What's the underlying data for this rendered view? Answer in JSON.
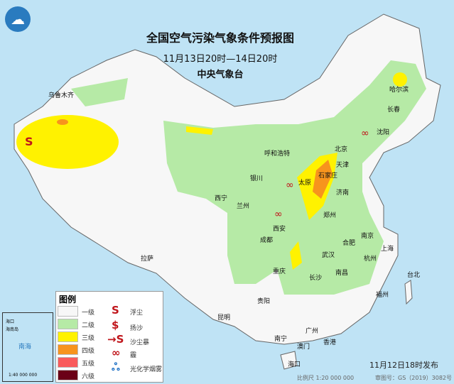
{
  "header": {
    "title": "全国空气污染气象条件预报图",
    "period": "11月13日20时—14日20时",
    "issuer": "中央气象台"
  },
  "colors": {
    "sea": "#bfe3f5",
    "level1": "#f7f7f7",
    "level2": "#b6eaa6",
    "level3": "#fff200",
    "level4": "#f7941d",
    "level5": "#f95b5b",
    "level6": "#6b0017",
    "symbol": "#c0151b",
    "smog": "#1c6fc4"
  },
  "cities": [
    "哈尔滨",
    "长春",
    "沈阳",
    "乌鲁木齐",
    "呼和浩特",
    "北京",
    "天津",
    "银川",
    "太原",
    "石家庄",
    "济南",
    "西宁",
    "兰州",
    "郑州",
    "西安",
    "南京",
    "合肥",
    "上海",
    "武汉",
    "杭州",
    "成都",
    "拉萨",
    "重庆",
    "南昌",
    "长沙",
    "贵阳",
    "福州",
    "台北",
    "昆明",
    "南宁",
    "广州",
    "香港",
    "澳门",
    "海口"
  ],
  "legend": {
    "title": "图例",
    "levels": [
      "一级",
      "二级",
      "三级",
      "四级",
      "五级",
      "六级"
    ],
    "phenomena": [
      "浮尘",
      "扬沙",
      "沙尘暴",
      "霾",
      "光化学烟雾"
    ],
    "phenomena_icons": [
      "s-icon",
      "s-arrow-icon",
      "s-arrow-storm-icon",
      "infinity-haze-icon",
      "three-rings-icon"
    ]
  },
  "inset": {
    "sea": "南海",
    "island": "海南岛",
    "city": "海口",
    "scale": "1:40 000 000"
  },
  "footer": {
    "issued": "11月12日18时发布",
    "scale": "比例尺 1:20 000 000",
    "map_no": "审图号：GS（2019）3082号"
  }
}
